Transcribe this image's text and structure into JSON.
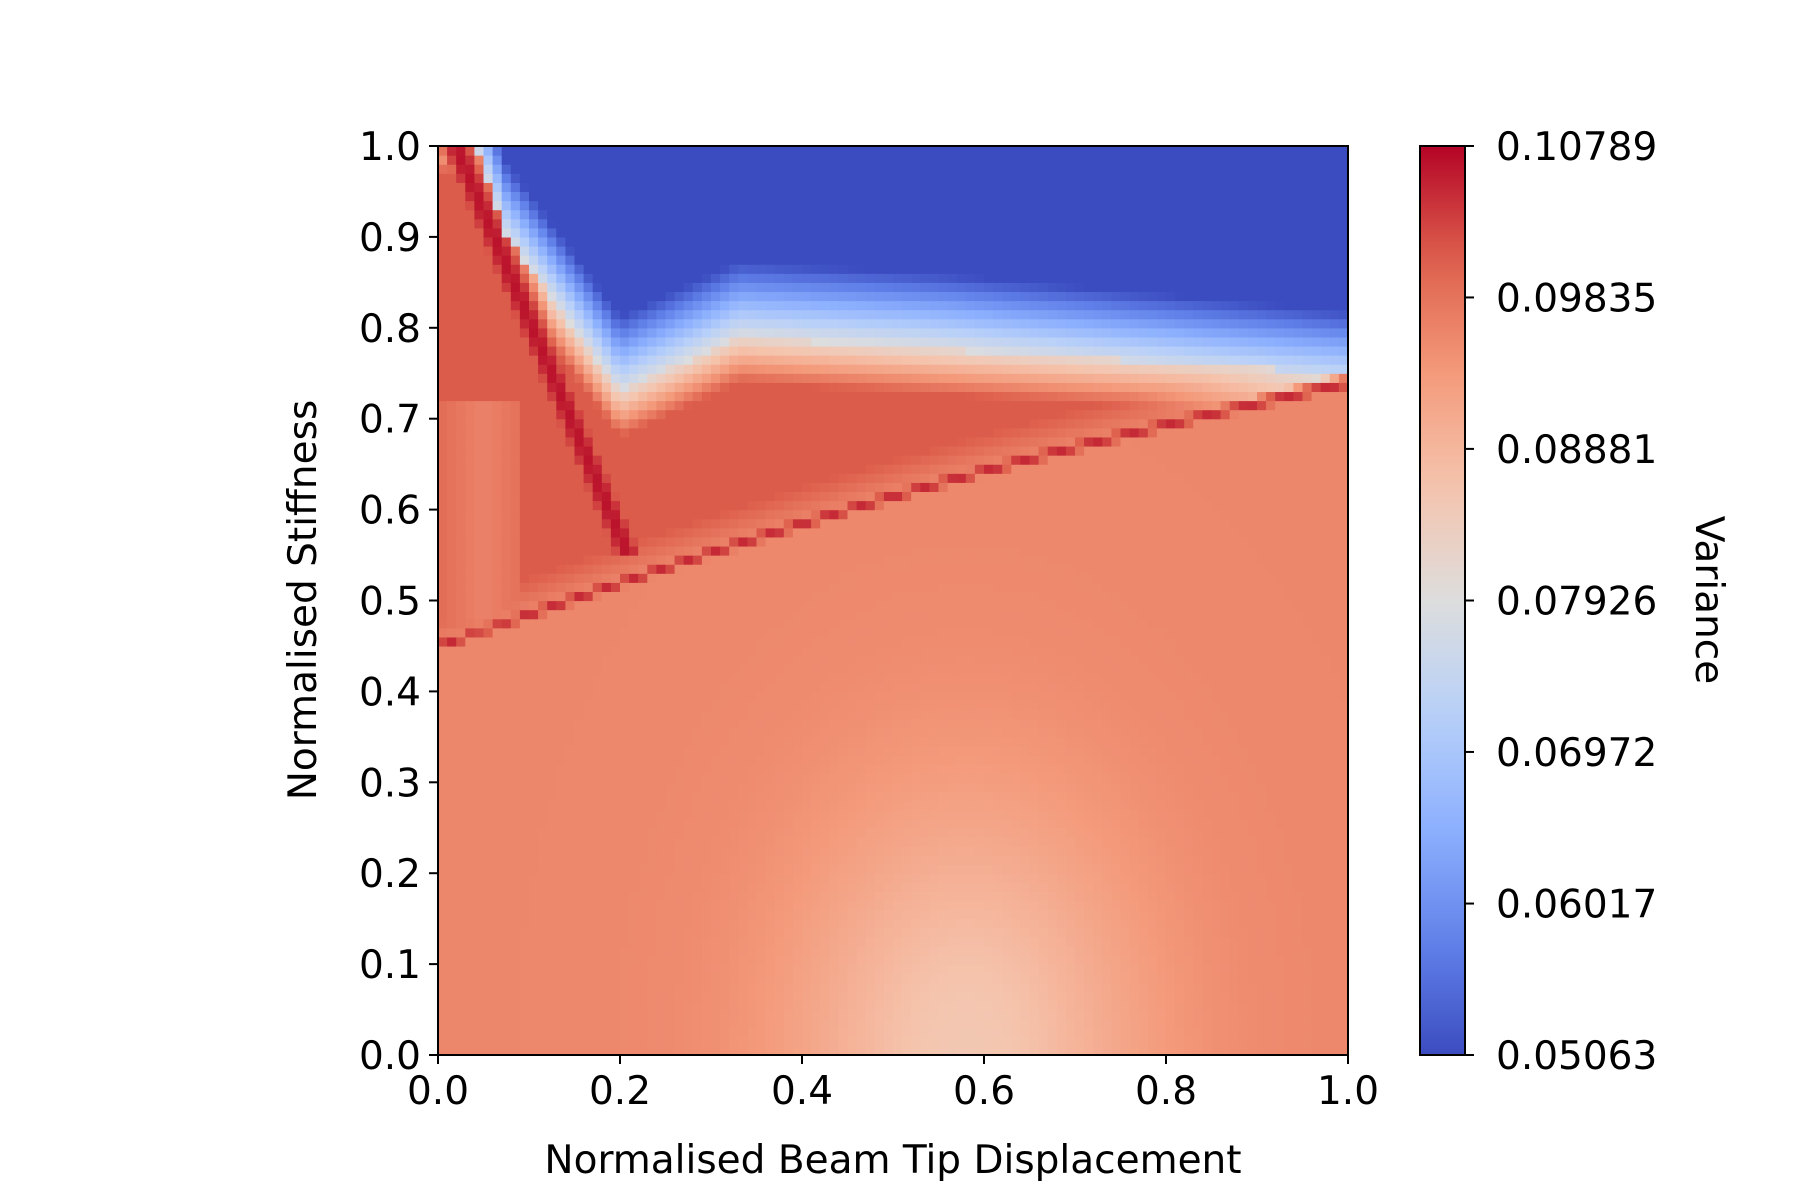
{
  "chart_data": {
    "type": "heatmap",
    "title": "",
    "xlabel": "Normalised Beam Tip Displacement",
    "ylabel": "Normalised Stiffness",
    "xlim": [
      0.0,
      1.0
    ],
    "ylim": [
      0.0,
      1.0
    ],
    "x_ticks": [
      "0.0",
      "0.2",
      "0.4",
      "0.6",
      "0.8",
      "1.0"
    ],
    "y_ticks": [
      "0.0",
      "0.1",
      "0.2",
      "0.3",
      "0.4",
      "0.5",
      "0.6",
      "0.7",
      "0.8",
      "0.9",
      "1.0"
    ],
    "colormap": "coolwarm",
    "grid": false,
    "colorbar": {
      "label": "Variance",
      "min": 0.05063,
      "max": 0.10789,
      "ticks": [
        "0.05063",
        "0.06017",
        "0.06972",
        "0.07926",
        "0.08881",
        "0.09835",
        "0.10789"
      ]
    },
    "features": [
      "Low-variance (blue) region occupies the top of the map above a boundary running from about (0.07, 1.0) down to (0.2, 0.73), rising to about 0.79 near x = 0.35 and easing to about 0.75 at x = 1.0",
      "Maximum-variance (dark red) ridge along the left edge descending from (0.0, 1.0) to about (0.2, 0.62)",
      "Dark red diagonal band from about (0.0, 0.45) rising to (1.0, 0.74)",
      "Pale peach low-moderate variance hump centred near x = 0.6 at the bottom, extending up to about 0.3"
    ]
  }
}
